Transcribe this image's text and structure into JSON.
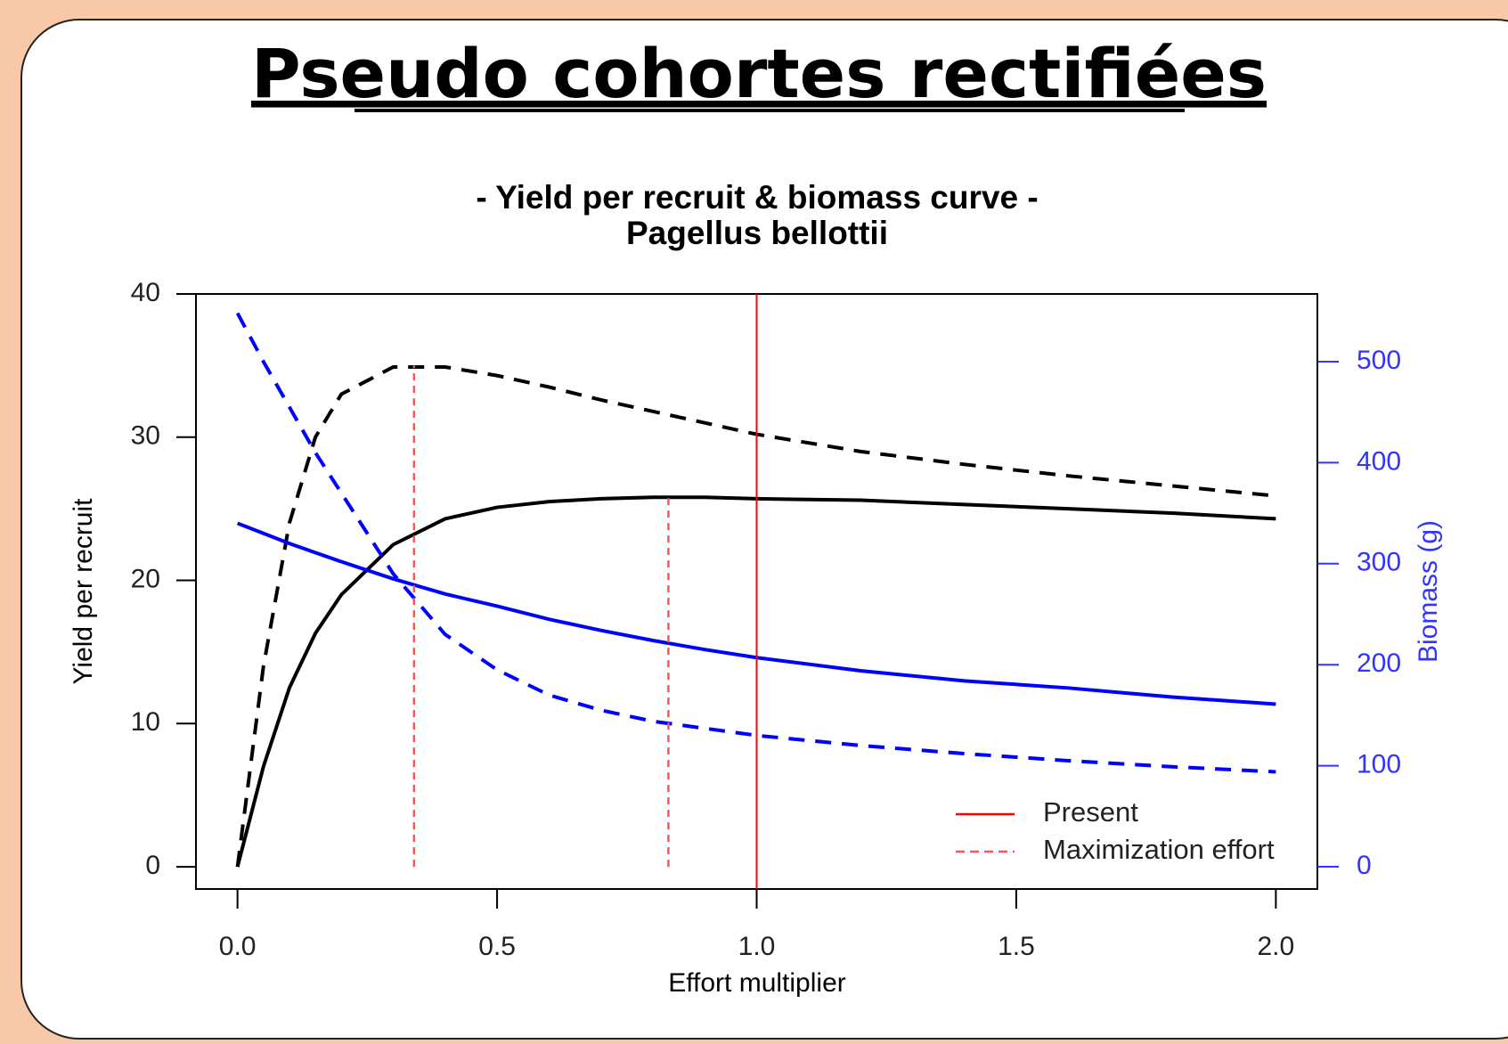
{
  "heading": "Pseudo cohortes rectifiées",
  "chart_data": {
    "type": "line",
    "title": "- Yield per recruit & biomass curve -",
    "subtitle": "Pagellus bellottii",
    "x_label": "Effort multiplier",
    "y_label": "Yield per recruit",
    "y2_label": "Biomass (g)",
    "y2_color": "#3333ff",
    "x": [
      0,
      0.05,
      0.1,
      0.15,
      0.2,
      0.3,
      0.4,
      0.5,
      0.6,
      0.7,
      0.8,
      0.9,
      1.0,
      1.2,
      1.4,
      1.6,
      1.8,
      2.0
    ],
    "series": [
      {
        "color": "#000000",
        "dash": "solid",
        "axis": "y",
        "values": [
          0,
          7,
          12.5,
          16.3,
          19,
          22.5,
          24.3,
          25.1,
          25.5,
          25.7,
          25.8,
          25.8,
          25.7,
          25.6,
          25.3,
          25,
          24.7,
          24.3
        ]
      },
      {
        "color": "#000000",
        "dash": "dashed",
        "axis": "y",
        "values": [
          0,
          14,
          24,
          30,
          33,
          34.9,
          34.9,
          34.3,
          33.5,
          32.6,
          31.8,
          31,
          30.2,
          29,
          28.1,
          27.3,
          26.6,
          25.9
        ]
      },
      {
        "color": "#0000ff",
        "dash": "solid",
        "axis": "y2",
        "values": [
          340,
          330,
          320,
          311,
          302,
          285,
          270,
          258,
          245,
          234,
          224,
          215,
          207,
          194,
          184,
          177,
          168,
          161
        ]
      },
      {
        "color": "#0000ff",
        "dash": "dashed",
        "axis": "y2",
        "values": [
          548,
          500,
          455,
          410,
          370,
          290,
          230,
          195,
          170,
          155,
          144,
          137,
          130,
          120,
          112,
          105,
          99,
          94
        ]
      }
    ],
    "markers": [
      {
        "name": "Present",
        "color": "#ff0000",
        "dash": "solid",
        "x": [
          1.0
        ]
      },
      {
        "name": "Maximization effort",
        "color": "#ff5555",
        "dash": "dashed",
        "x": [
          0.34,
          0.83
        ],
        "y": [
          35,
          25.8
        ]
      }
    ],
    "legend": "bottom-right",
    "xlim": [
      -0.08,
      2.08
    ],
    "xticks": [
      {
        "value": 0,
        "label": "0.0"
      },
      0.5,
      {
        "value": 1,
        "label": "1.0"
      },
      1.5,
      {
        "value": 2,
        "label": "2.0"
      }
    ],
    "ylim": [
      -1.55,
      40
    ],
    "yticks": [
      0,
      10,
      20,
      30,
      40
    ],
    "y2lim": [
      -22,
      567
    ],
    "y2ticks": [
      0,
      100,
      200,
      300,
      400,
      500
    ]
  }
}
